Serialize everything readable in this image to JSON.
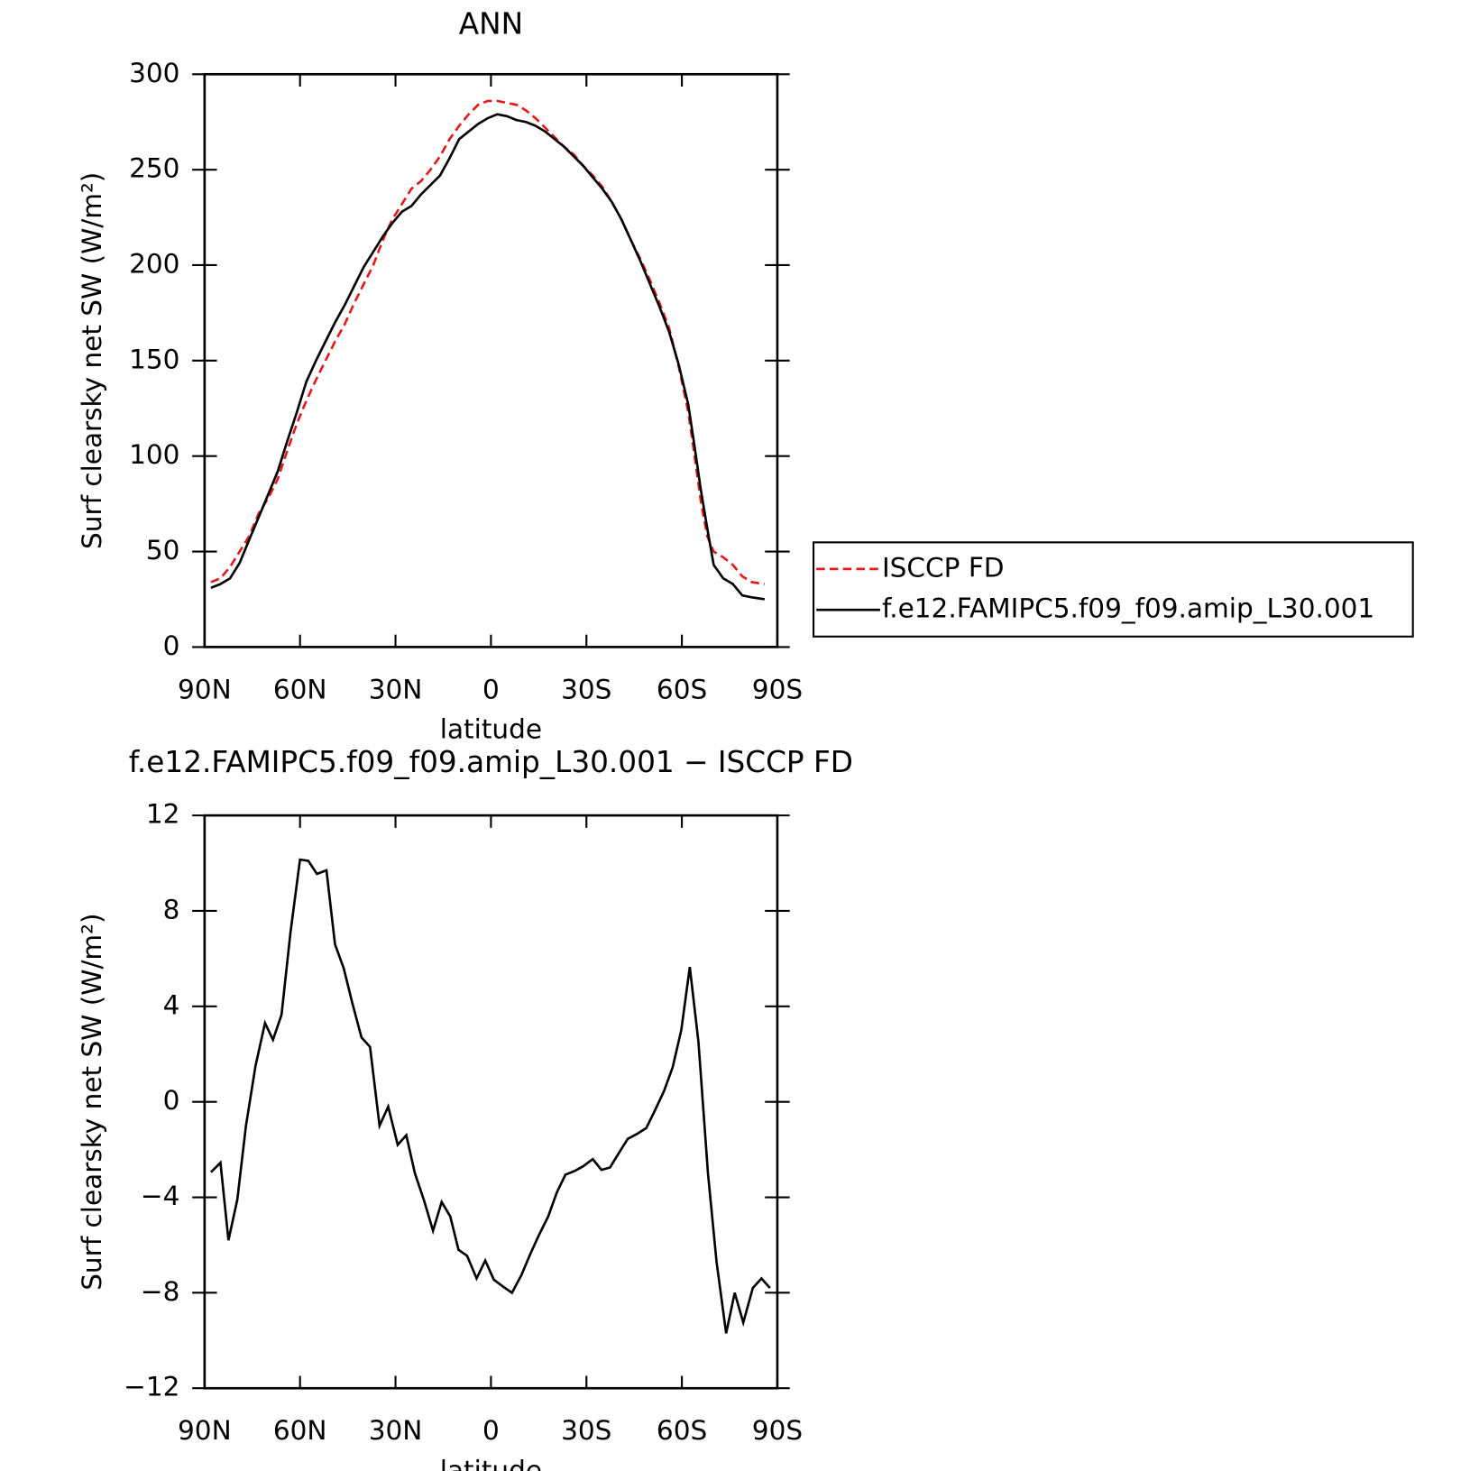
{
  "chart_data": [
    {
      "type": "line",
      "title": "ANN",
      "xlabel": "latitude",
      "ylabel": "Surf clearsky net SW (W/m²)",
      "xlim": [
        90,
        -90
      ],
      "xticks": [
        {
          "value": 90,
          "label": "90N"
        },
        {
          "value": 60,
          "label": "60N"
        },
        {
          "value": 30,
          "label": "30N"
        },
        0,
        {
          "value": -30,
          "label": "30S"
        },
        {
          "value": -60,
          "label": "60S"
        },
        {
          "value": -90,
          "label": "90S"
        }
      ],
      "ylim": [
        0,
        300
      ],
      "yticks": [
        0,
        50,
        100,
        150,
        200,
        250,
        300
      ],
      "legend": "right",
      "x": [
        88,
        85,
        82,
        79,
        76,
        73,
        70,
        67,
        64,
        61,
        58,
        55,
        52,
        49,
        46,
        43,
        40,
        37,
        34,
        31,
        28,
        25,
        22,
        19,
        16,
        13,
        10,
        7,
        4,
        1,
        -2,
        -5,
        -8,
        -11,
        -14,
        -17,
        -20,
        -23,
        -26,
        -29,
        -32,
        -35,
        -38,
        -41,
        -44,
        -47,
        -50,
        -53,
        -56,
        -59,
        -62,
        -64,
        -66,
        -68,
        -70,
        -73,
        -76,
        -79,
        -82,
        -86
      ],
      "series": [
        {
          "name": "ISCCP FD",
          "color": "#e31a1c",
          "line_style": "dashed",
          "values": [
            34,
            36,
            42,
            50,
            58,
            70,
            78,
            88,
            103,
            117,
            129,
            140,
            150,
            160,
            169,
            180,
            190,
            200,
            213,
            224,
            232,
            240,
            244,
            250,
            257,
            266,
            273,
            279,
            284,
            286,
            286,
            285,
            284,
            281,
            277,
            272,
            267,
            262,
            258,
            252,
            247,
            241,
            233,
            224,
            213,
            203,
            192,
            180,
            167,
            147,
            123,
            100,
            76,
            58,
            50,
            47,
            43,
            37,
            34,
            33
          ]
        },
        {
          "name": "f.e12.FAMIPC5.f09_f09.amip_L30.001",
          "color": "#000000",
          "line_style": "solid",
          "values": [
            31,
            33,
            36,
            44,
            56,
            68,
            80,
            92,
            108,
            123,
            139,
            150,
            160,
            170,
            179,
            189,
            199,
            207,
            215,
            222,
            228,
            231,
            237,
            242,
            247,
            256,
            266,
            270,
            274,
            277,
            279,
            278,
            276,
            275,
            273,
            270,
            266,
            262,
            257,
            252,
            246,
            240,
            233,
            224,
            213,
            202,
            190,
            178,
            165,
            148,
            127,
            105,
            82,
            62,
            43,
            36,
            33,
            27,
            26,
            25
          ]
        }
      ]
    },
    {
      "type": "line",
      "title": "f.e12.FAMIPC5.f09_f09.amip_L30.001 − ISCCP FD",
      "xlabel": "latitude",
      "ylabel": "Surf clearsky net SW (W/m²)",
      "xlim": [
        90,
        -90
      ],
      "xticks": [
        {
          "value": 90,
          "label": "90N"
        },
        {
          "value": 60,
          "label": "60N"
        },
        {
          "value": 30,
          "label": "30N"
        },
        0,
        {
          "value": -30,
          "label": "30S"
        },
        {
          "value": -60,
          "label": "60S"
        },
        {
          "value": -90,
          "label": "90S"
        }
      ],
      "ylim": [
        -12,
        12
      ],
      "yticks": [
        {
          "value": -12,
          "label": "−12"
        },
        {
          "value": -8,
          "label": "−8"
        },
        {
          "value": -4,
          "label": "−4"
        },
        0,
        4,
        8,
        12
      ],
      "x": [
        88,
        85,
        82.5,
        79.7,
        77,
        74,
        71,
        68.5,
        65.8,
        63,
        60,
        57.4,
        54.7,
        51.7,
        49,
        46.3,
        43.6,
        40.7,
        38,
        35,
        32.3,
        29.3,
        26.6,
        23.9,
        21,
        18.2,
        15.5,
        12.8,
        10.2,
        7.5,
        4.5,
        1.8,
        -0.9,
        -3.9,
        -6.6,
        -9.6,
        -12.3,
        -15,
        -18,
        -20.7,
        -23.4,
        -26.3,
        -29,
        -32,
        -34.7,
        -37.4,
        -40.4,
        -43,
        -45.8,
        -48.8,
        -51.4,
        -54.4,
        -57.1,
        -59.8,
        -62.5,
        -65.2,
        -68.2,
        -70.9,
        -73.9,
        -76.6,
        -79.3,
        -82.3,
        -85,
        -87.7
      ],
      "series": [
        {
          "color": "#000000",
          "line_style": "solid",
          "values": [
            -2.95,
            -2.55,
            -5.8,
            -4.1,
            -1.0,
            1.5,
            3.3,
            2.6,
            3.65,
            7.1,
            10.15,
            10.1,
            9.55,
            9.7,
            6.6,
            5.6,
            4.15,
            2.7,
            2.3,
            -1.0,
            -0.2,
            -1.8,
            -1.4,
            -3.0,
            -4.15,
            -5.4,
            -4.2,
            -4.8,
            -6.2,
            -6.45,
            -7.4,
            -6.65,
            -7.45,
            -7.75,
            -8.0,
            -7.25,
            -6.4,
            -5.6,
            -4.8,
            -3.8,
            -3.05,
            -2.9,
            -2.7,
            -2.4,
            -2.85,
            -2.75,
            -2.1,
            -1.55,
            -1.35,
            -1.1,
            -0.4,
            0.45,
            1.45,
            3.0,
            5.65,
            2.5,
            -3.0,
            -6.7,
            -9.7,
            -8.0,
            -9.25,
            -7.8,
            -7.4,
            -7.8
          ]
        }
      ]
    }
  ]
}
